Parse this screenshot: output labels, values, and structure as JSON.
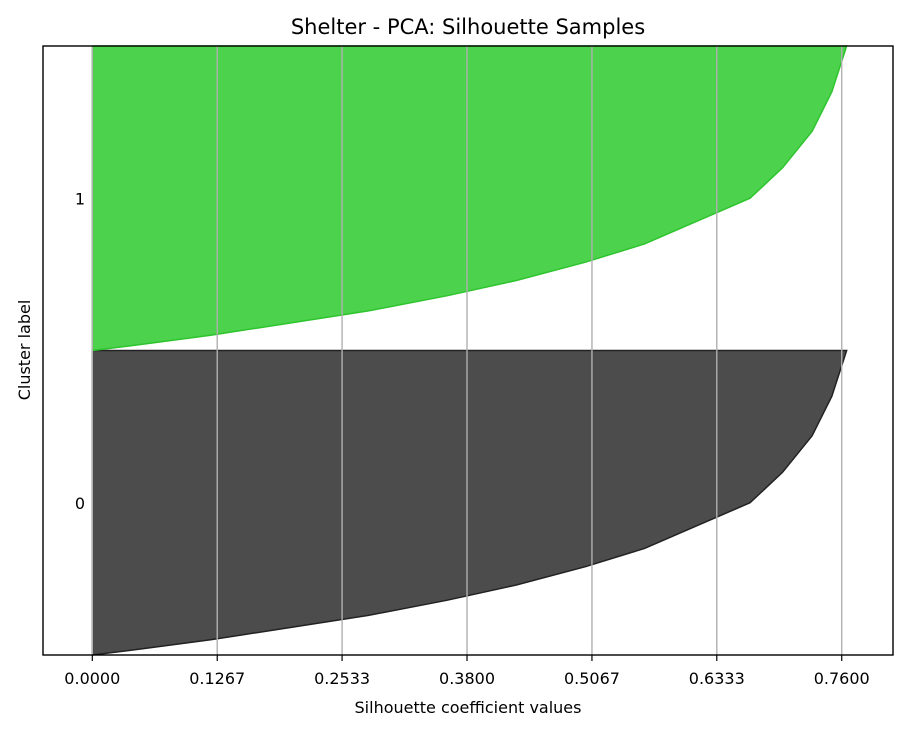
{
  "chart_data": {
    "type": "area",
    "title": "Shelter - PCA: Silhouette Samples",
    "xlabel": "Silhouette coefficient values",
    "ylabel": "Cluster label",
    "xlim": [
      -0.05,
      0.812
    ],
    "x_ticks": [
      "0.0000",
      "0.1267",
      "0.2533",
      "0.3800",
      "0.5067",
      "0.6333",
      "0.7600"
    ],
    "x_tick_values": [
      0.0,
      0.1267,
      0.2533,
      0.38,
      0.5067,
      0.6333,
      0.76
    ],
    "grid": "vertical",
    "clusters": [
      {
        "label": "0",
        "color": "#4c4c4c",
        "edge_color": "#222222",
        "profile": [
          [
            0.0,
            0.0
          ],
          [
            0.05,
            0.02
          ],
          [
            0.12,
            0.05
          ],
          [
            0.2,
            0.09
          ],
          [
            0.28,
            0.13
          ],
          [
            0.36,
            0.18
          ],
          [
            0.43,
            0.23
          ],
          [
            0.5,
            0.29
          ],
          [
            0.56,
            0.35
          ],
          [
            0.61,
            0.42
          ],
          [
            0.667,
            0.5
          ],
          [
            0.7,
            0.6
          ],
          [
            0.73,
            0.72
          ],
          [
            0.75,
            0.85
          ],
          [
            0.76,
            0.95
          ],
          [
            0.765,
            1.0
          ]
        ]
      },
      {
        "label": "1",
        "color": "#4cd24c",
        "edge_color": "#2ec42e",
        "profile": [
          [
            0.0,
            0.0
          ],
          [
            0.05,
            0.02
          ],
          [
            0.12,
            0.05
          ],
          [
            0.2,
            0.09
          ],
          [
            0.28,
            0.13
          ],
          [
            0.36,
            0.18
          ],
          [
            0.43,
            0.23
          ],
          [
            0.5,
            0.29
          ],
          [
            0.56,
            0.35
          ],
          [
            0.61,
            0.42
          ],
          [
            0.667,
            0.5
          ],
          [
            0.7,
            0.6
          ],
          [
            0.73,
            0.72
          ],
          [
            0.75,
            0.85
          ],
          [
            0.76,
            0.95
          ],
          [
            0.765,
            1.0
          ]
        ]
      }
    ]
  }
}
